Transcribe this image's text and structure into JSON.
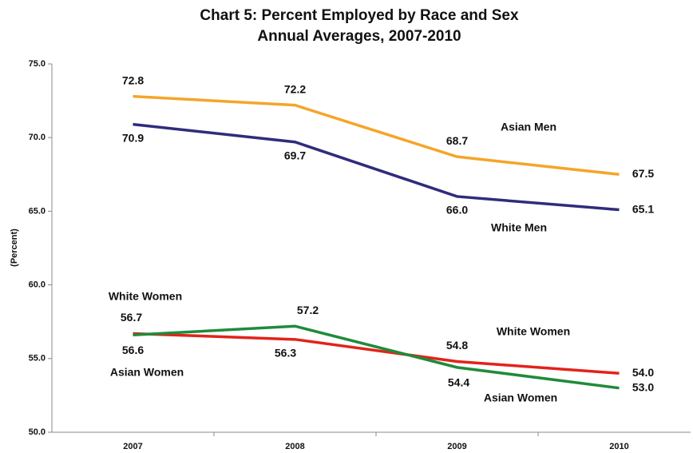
{
  "chart_data": {
    "type": "line",
    "title": "Chart 5: Percent Employed by Race and Sex",
    "subtitle": "Annual Averages, 2007-2010",
    "y_label": "(Percent)",
    "categories": [
      "2007",
      "2008",
      "2009",
      "2010"
    ],
    "ylim": [
      50,
      75
    ],
    "yticks": [
      {
        "value": 50,
        "label": "50.0"
      },
      {
        "value": 55,
        "label": "55.0"
      },
      {
        "value": 60,
        "label": "60.0"
      },
      {
        "value": 65,
        "label": "65.0"
      },
      {
        "value": 70,
        "label": "70.0"
      },
      {
        "value": 75,
        "label": "75.0"
      }
    ],
    "grid": false,
    "series": [
      {
        "name": "Asian Men",
        "color": "#f5a52a",
        "values": [
          72.8,
          72.2,
          68.7,
          67.5
        ],
        "value_labels": [
          "72.8",
          "72.2",
          "68.7",
          "67.5"
        ]
      },
      {
        "name": "White Men",
        "color": "#2f2c7c",
        "values": [
          70.9,
          69.7,
          66.0,
          65.1
        ],
        "value_labels": [
          "70.9",
          "69.7",
          "66.0",
          "65.1"
        ]
      },
      {
        "name": "White Women",
        "color": "#e2231a",
        "values": [
          56.7,
          56.3,
          54.8,
          54.0
        ],
        "value_labels": [
          "56.7",
          "56.3",
          "54.8",
          "54.0"
        ]
      },
      {
        "name": "Asian Women",
        "color": "#1f8b3b",
        "values": [
          56.6,
          57.2,
          54.4,
          53.0
        ],
        "value_labels": [
          "56.6",
          "57.2",
          "54.4",
          "53.0"
        ]
      }
    ]
  }
}
